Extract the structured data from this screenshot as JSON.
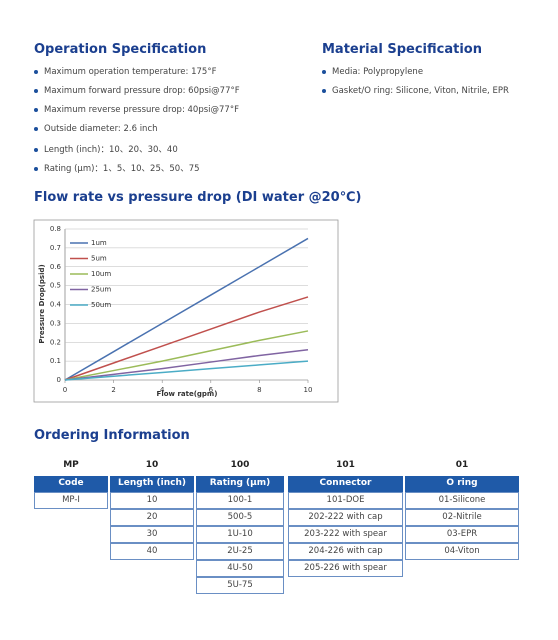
{
  "operation": {
    "title": "Operation Specification",
    "items": [
      "Maximum operation temperature: 175°F",
      "Maximum forward pressure drop: 60psi@77°F",
      "Maximum reverse pressure drop: 40psi@77°F",
      "Outside diameter: 2.6 inch",
      "Length (inch)：10、20、30、40",
      "Rating (μm)：1、5、10、25、50、75"
    ]
  },
  "material": {
    "title": "Material Specification",
    "items": [
      "Media: Polypropylene",
      "Gasket/O ring: Silicone, Viton, Nitrile,  EPR"
    ]
  },
  "chart_data": {
    "type": "line",
    "title": "Flow rate vs pressure drop (DI water @20℃)",
    "x_label": "Flow rate(gpm)",
    "y_label": "Pressure Drop(psid)",
    "x": [
      0,
      2,
      4,
      6,
      8,
      10
    ],
    "xlim": [
      0,
      10
    ],
    "xticks": [
      0,
      2,
      4,
      6,
      8,
      10
    ],
    "ylim": [
      0,
      0.8
    ],
    "yticks": [
      0,
      0.1,
      0.2,
      0.3,
      0.4,
      0.5,
      0.6,
      0.7,
      0.8
    ],
    "grid": true,
    "legend": "upper left",
    "series": [
      {
        "name": "1um",
        "color": "#4a72b0",
        "values": [
          0,
          0.15,
          0.3,
          0.45,
          0.6,
          0.75
        ]
      },
      {
        "name": "5um",
        "color": "#c0504d",
        "values": [
          0,
          0.09,
          0.18,
          0.27,
          0.36,
          0.44
        ]
      },
      {
        "name": "10um",
        "color": "#9bbb59",
        "values": [
          0,
          0.05,
          0.1,
          0.155,
          0.21,
          0.26
        ]
      },
      {
        "name": "25um",
        "color": "#8064a2",
        "values": [
          0,
          0.03,
          0.06,
          0.095,
          0.13,
          0.16
        ]
      },
      {
        "name": "50um",
        "color": "#4bacc6",
        "values": [
          0,
          0.02,
          0.04,
          0.06,
          0.08,
          0.1
        ]
      }
    ]
  },
  "ordering": {
    "title": "Ordering Information",
    "part": [
      "MP",
      "10",
      "100",
      "101",
      "01"
    ],
    "headers": [
      "Code",
      "Length (inch)",
      "Rating (μm)",
      "Connector",
      "O ring"
    ],
    "columns": [
      [
        "MP-I"
      ],
      [
        "10",
        "20",
        "30",
        "40"
      ],
      [
        "100-1",
        "500-5",
        "1U-10",
        "2U-25",
        "4U-50",
        "5U-75"
      ],
      [
        "101-DOE",
        "202-222 with cap",
        "203-222 with spear",
        "204-226 with cap",
        "205-226 with spear"
      ],
      [
        "01-Silicone",
        "02-Nitrile",
        "03-EPR",
        "04-Viton"
      ]
    ]
  }
}
